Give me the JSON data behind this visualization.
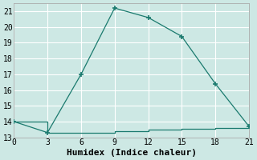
{
  "xlabel": "Humidex (Indice chaleur)",
  "background_color": "#cde8e4",
  "grid_color": "#ffffff",
  "line_color": "#1a7a6e",
  "xlim": [
    0,
    21
  ],
  "ylim": [
    13,
    21.5
  ],
  "xticks": [
    0,
    3,
    6,
    9,
    12,
    15,
    18,
    21
  ],
  "yticks": [
    13,
    14,
    15,
    16,
    17,
    18,
    19,
    20,
    21
  ],
  "series1_x": [
    0,
    3,
    6,
    9,
    12,
    15,
    18,
    21
  ],
  "series1_y": [
    14.0,
    13.3,
    17.0,
    21.2,
    20.6,
    19.4,
    16.4,
    13.7
  ],
  "series2_x": [
    0,
    3,
    6,
    9,
    12,
    15,
    18,
    21
  ],
  "series2_y": [
    14.0,
    13.3,
    13.3,
    13.4,
    13.5,
    13.55,
    13.6,
    13.7
  ],
  "marker": "+",
  "markersize": 5,
  "linewidth": 0.9,
  "font_family": "monospace",
  "xlabel_fontsize": 8,
  "tick_fontsize": 7
}
